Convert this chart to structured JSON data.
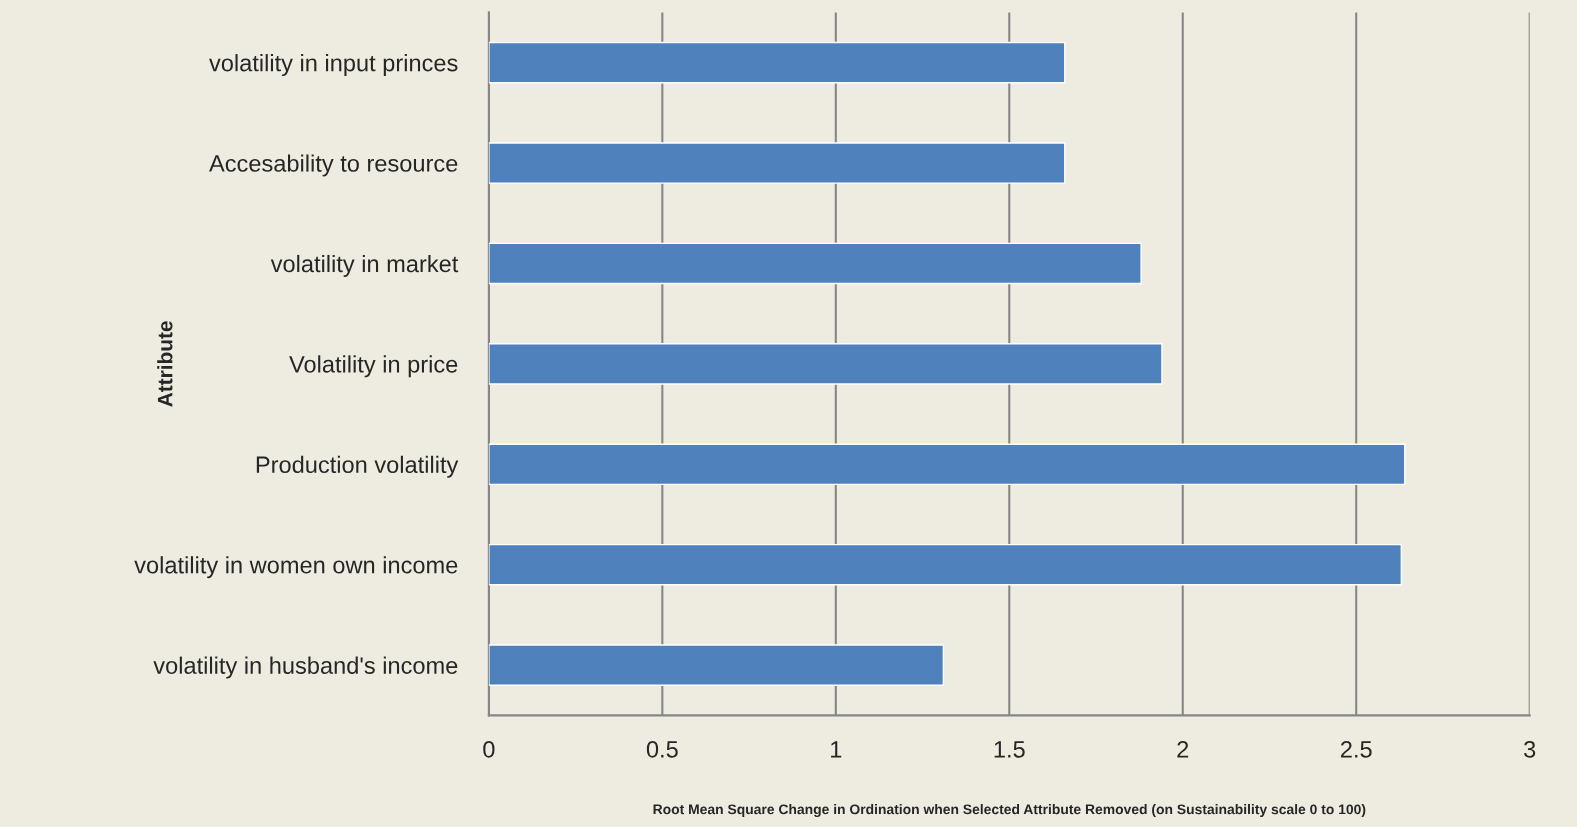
{
  "chart_data": {
    "type": "bar",
    "orientation": "horizontal",
    "categories": [
      "volatility in input princes",
      "Accesability to resource",
      "volatility in market",
      "Volatility in price",
      "Production volatility",
      "volatility in women own income",
      "volatility in husband's income"
    ],
    "values": [
      1.66,
      1.66,
      1.88,
      1.94,
      2.64,
      2.63,
      1.31
    ],
    "color": "#4f81bd",
    "xlim": [
      0,
      3
    ],
    "xticks": [
      0,
      0.5,
      1,
      1.5,
      2,
      2.5,
      3
    ],
    "xlabel": "Root Mean Square Change in Ordination when Selected Attribute Removed (on Sustainability scale 0 to 100)",
    "ylabel": "Attribute",
    "grid": "x"
  }
}
